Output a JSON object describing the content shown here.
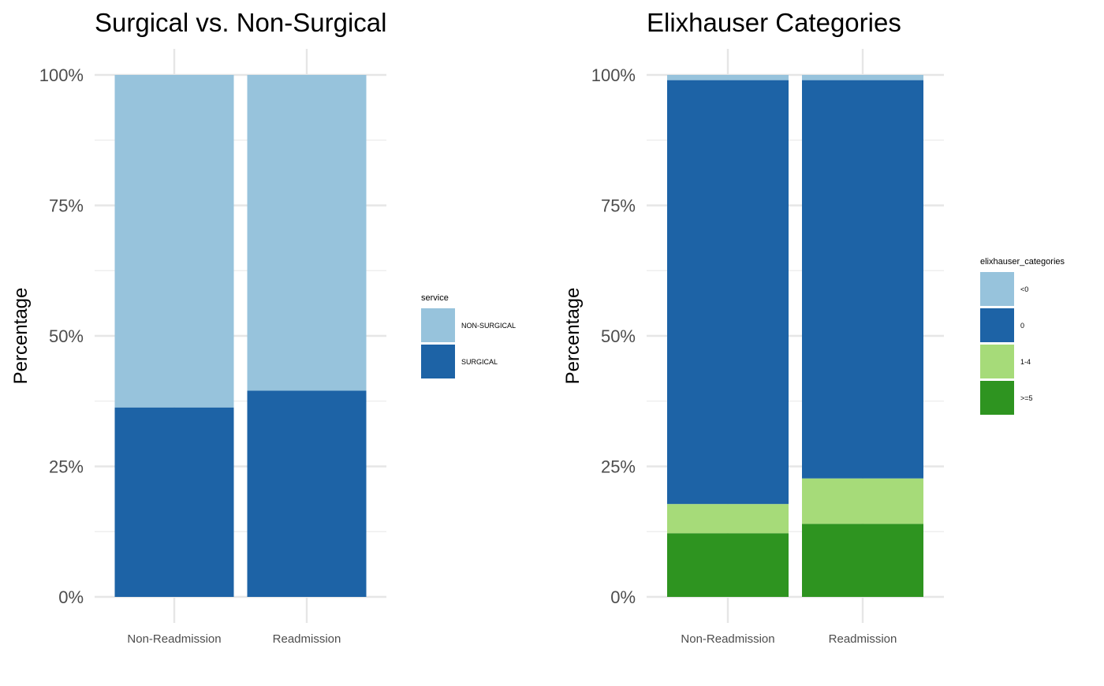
{
  "chart_data": [
    {
      "type": "bar",
      "stacked": true,
      "title": "Surgical vs. Non-Surgical",
      "xlabel": "",
      "ylabel": "Percentage",
      "ylim": [
        0,
        1
      ],
      "yticks": [
        "0%",
        "25%",
        "50%",
        "75%",
        "100%"
      ],
      "categories": [
        "Non-Readmission",
        "Readmission"
      ],
      "legend_title": "service",
      "legend_position": "right",
      "grid": true,
      "series": [
        {
          "name": "NON-SURGICAL",
          "color": "#97C3DC",
          "values": [
            0.637,
            0.605
          ]
        },
        {
          "name": "SURGICAL",
          "color": "#1D63A6",
          "values": [
            0.363,
            0.395
          ]
        }
      ]
    },
    {
      "type": "bar",
      "stacked": true,
      "title": "Elixhauser Categories",
      "xlabel": "",
      "ylabel": "Percentage",
      "ylim": [
        0,
        1
      ],
      "yticks": [
        "0%",
        "25%",
        "50%",
        "75%",
        "100%"
      ],
      "categories": [
        "Non-Readmission",
        "Readmission"
      ],
      "legend_title": "elixhauser_categories",
      "legend_position": "right",
      "grid": true,
      "series": [
        {
          "name": "<0",
          "color": "#97C3DC",
          "values": [
            0.01,
            0.01
          ]
        },
        {
          "name": "0",
          "color": "#1D63A6",
          "values": [
            0.812,
            0.763
          ]
        },
        {
          "name": "1-4",
          "color": "#A6DB79",
          "values": [
            0.056,
            0.087
          ]
        },
        {
          "name": ">=5",
          "color": "#2E9420",
          "values": [
            0.122,
            0.14
          ]
        }
      ]
    }
  ]
}
